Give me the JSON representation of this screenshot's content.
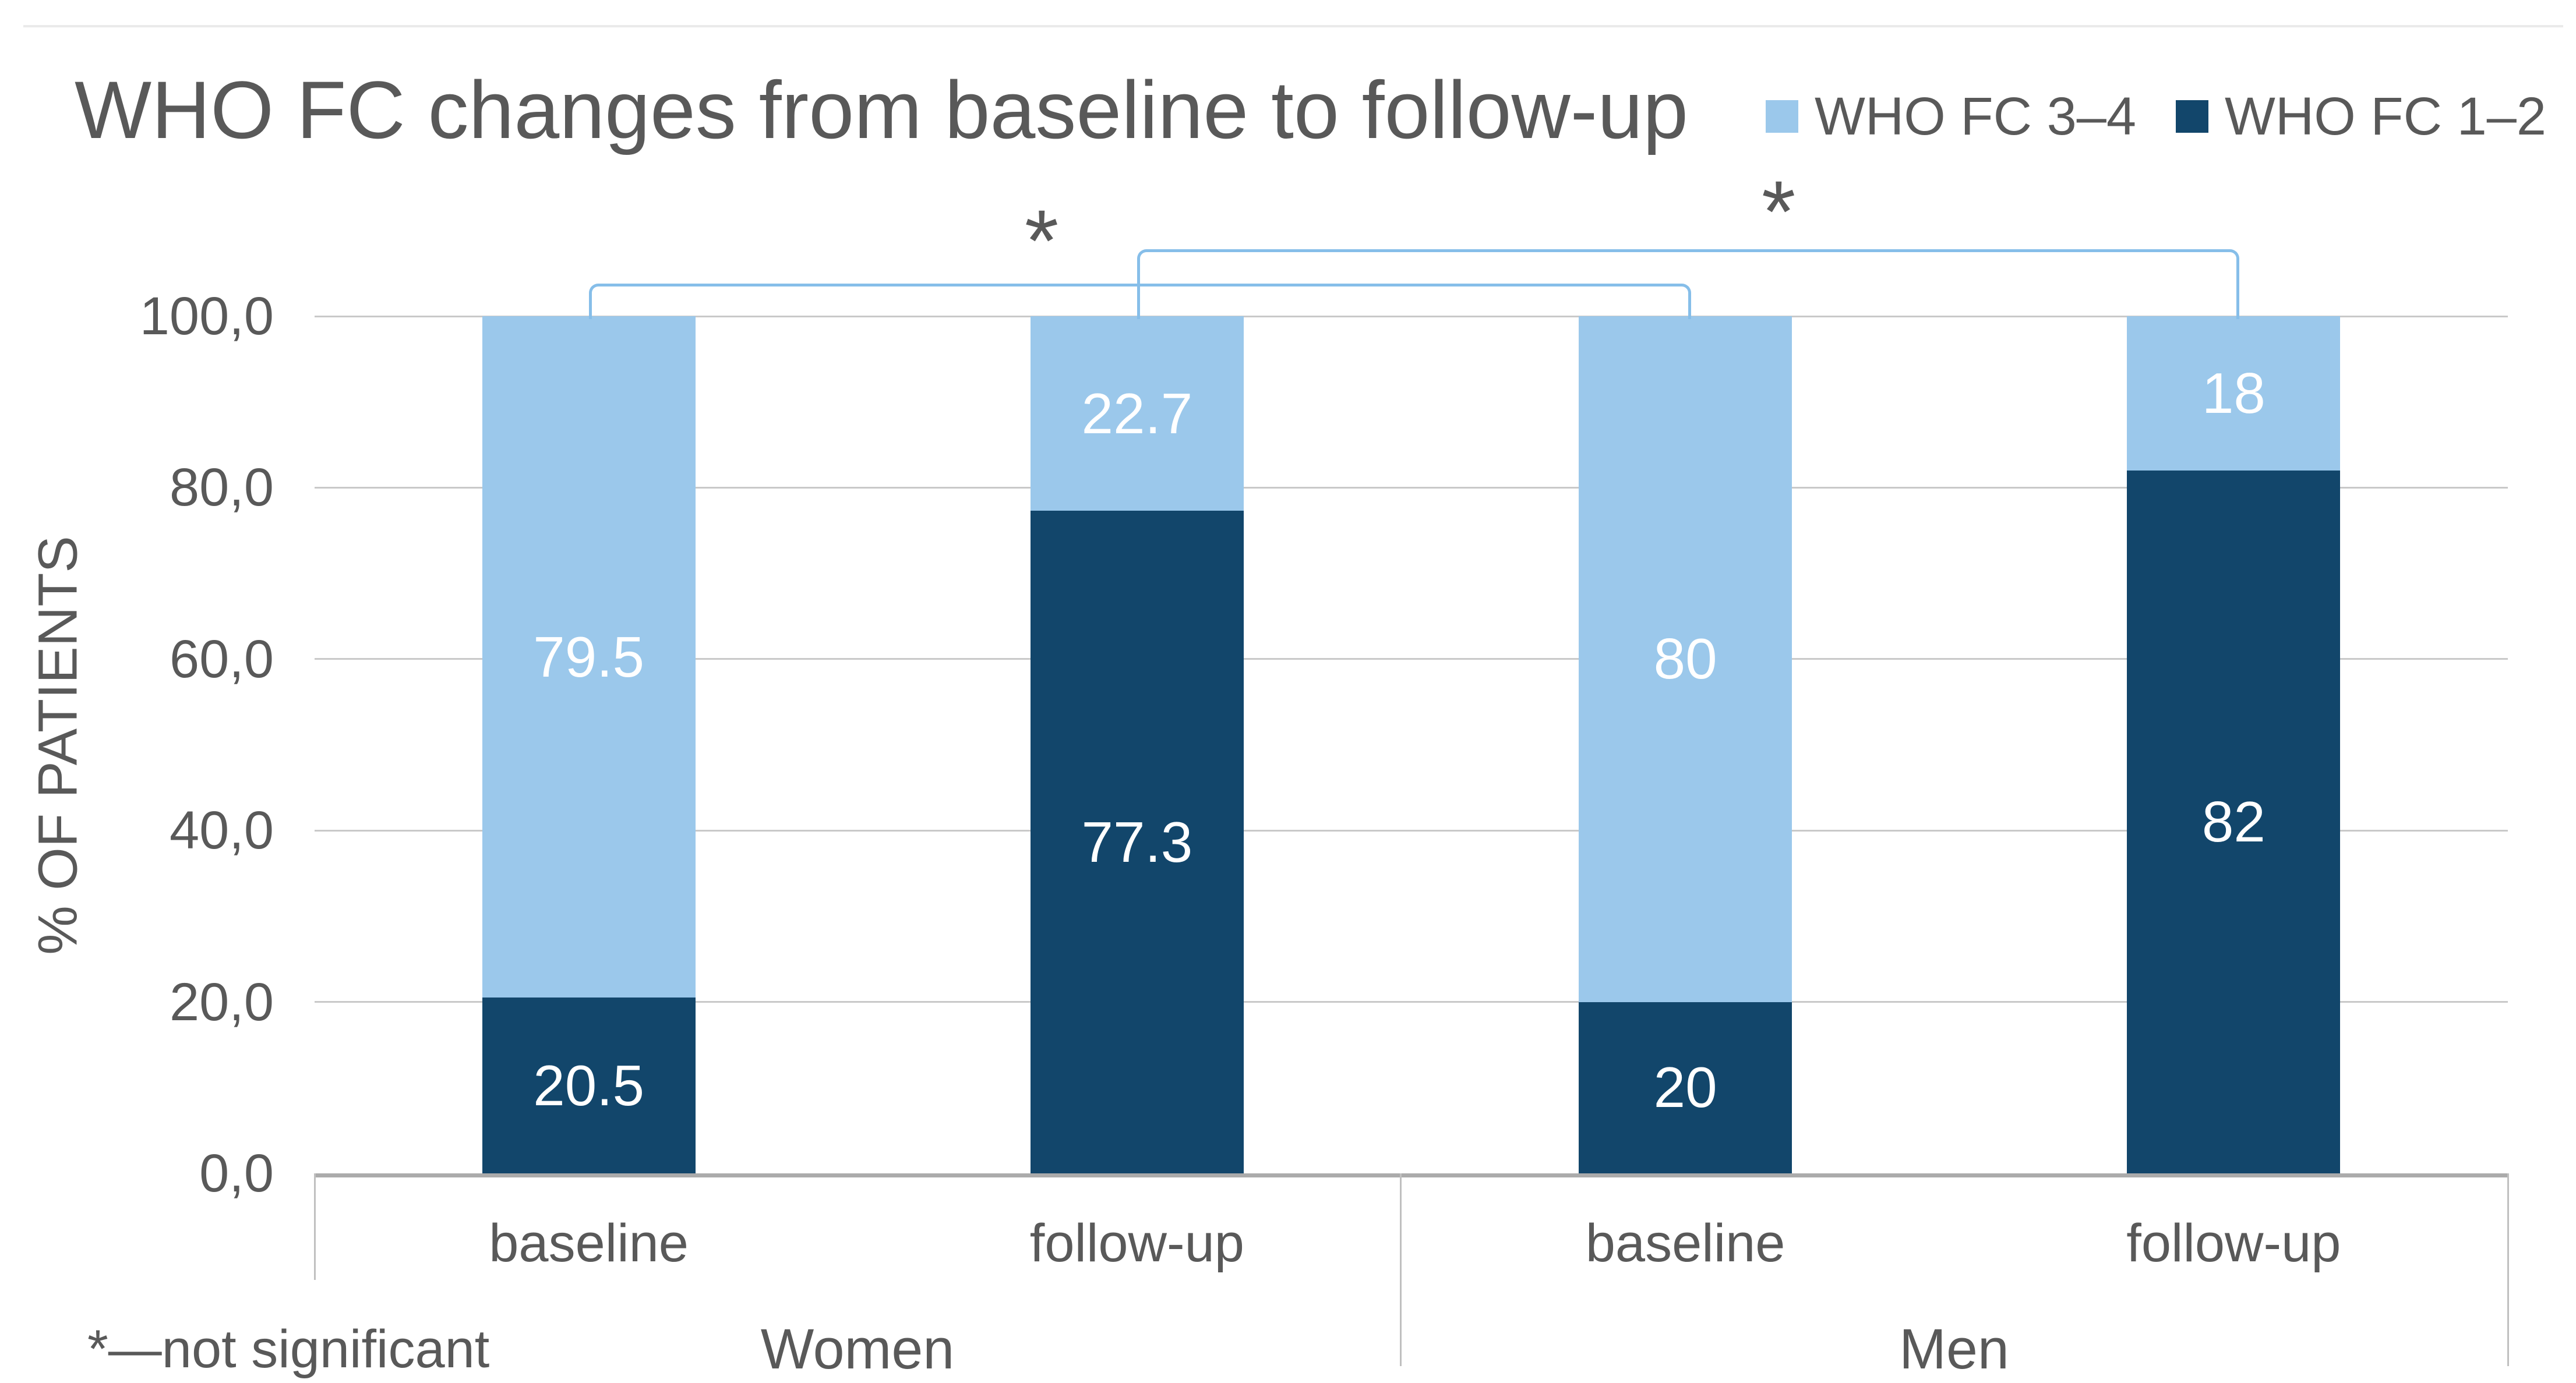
{
  "chart_data": {
    "type": "bar",
    "stacked": true,
    "stacked_total": 100,
    "title": "WHO FC changes from baseline to follow-up",
    "ylabel": "% OF PATIENTS",
    "xlabel": "",
    "ylim": [
      0,
      100
    ],
    "grid": "horizontal",
    "legend_position": "top-right",
    "decimal_style_axis": "comma",
    "yticks": [
      {
        "value": 0,
        "label": "0,0"
      },
      {
        "value": 20,
        "label": "20,0"
      },
      {
        "value": 40,
        "label": "40,0"
      },
      {
        "value": 60,
        "label": "60,0"
      },
      {
        "value": 80,
        "label": "80,0"
      },
      {
        "value": 100,
        "label": "100,0"
      }
    ],
    "series": [
      {
        "name": "WHO FC 3–4",
        "color": "#9bc8eb",
        "values": [
          79.5,
          22.7,
          80,
          18
        ]
      },
      {
        "name": "WHO FC 1–2",
        "color": "#12466b",
        "values": [
          20.5,
          77.3,
          20,
          82
        ]
      }
    ],
    "groups": [
      {
        "label": "Women",
        "categories": [
          {
            "label": "baseline",
            "segments": [
              {
                "series": "WHO FC 1–2",
                "value": 20.5,
                "label": "20.5"
              },
              {
                "series": "WHO FC 3–4",
                "value": 79.5,
                "label": "79.5"
              }
            ]
          },
          {
            "label": "follow-up",
            "segments": [
              {
                "series": "WHO FC 1–2",
                "value": 77.3,
                "label": "77.3"
              },
              {
                "series": "WHO FC 3–4",
                "value": 22.7,
                "label": "22.7"
              }
            ]
          }
        ]
      },
      {
        "label": "Men",
        "categories": [
          {
            "label": "baseline",
            "segments": [
              {
                "series": "WHO FC 1–2",
                "value": 20,
                "label": "20"
              },
              {
                "series": "WHO FC 3–4",
                "value": 80,
                "label": "80"
              }
            ]
          },
          {
            "label": "follow-up",
            "segments": [
              {
                "series": "WHO FC 1–2",
                "value": 82,
                "label": "82"
              },
              {
                "series": "WHO FC 3–4",
                "value": 18,
                "label": "18"
              }
            ]
          }
        ]
      }
    ],
    "annotations": {
      "brackets": [
        {
          "label": "*",
          "compares": [
            "Women baseline",
            "Men baseline"
          ]
        },
        {
          "label": "*",
          "compares": [
            "Women follow-up",
            "Men follow-up"
          ]
        }
      ],
      "footnote": "*—not significant"
    }
  },
  "legend": {
    "entries": [
      {
        "label": "WHO FC 3–4",
        "color": "#9bc8eb"
      },
      {
        "label": "WHO FC 1–2",
        "color": "#12466b"
      }
    ]
  },
  "colors": {
    "bar_light_blue": "#9bc8eb",
    "bar_dark_navy": "#12466b",
    "bracket_blue": "#86bee9",
    "text_grey": "#595959",
    "gridline_grey": "#c9c9c9",
    "axis_line_grey": "#ababab",
    "category_border_grey": "#c0c0c0",
    "data_label_white": "#ffffff"
  }
}
